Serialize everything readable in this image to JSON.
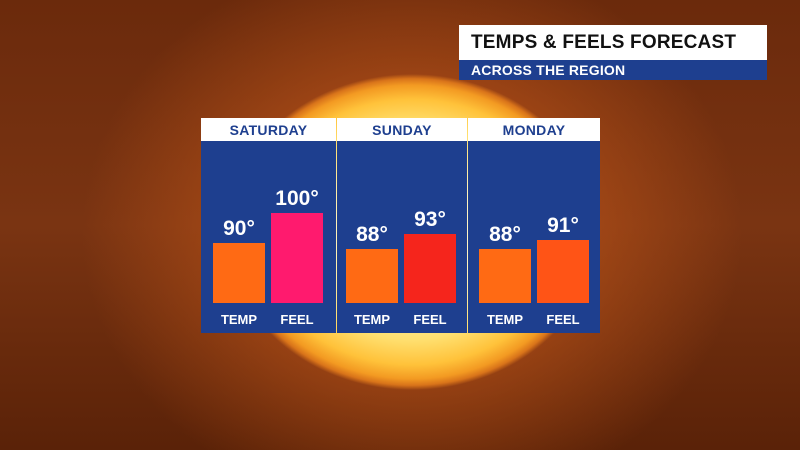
{
  "header": {
    "title": "TEMPS & FEELS FORECAST",
    "subtitle": "ACROSS THE REGION"
  },
  "colors": {
    "panel_blue": "#1e3f8f",
    "bar_orange": "#ff6a14",
    "bar_pink": "#ff1a6e",
    "bar_red": "#f5251c"
  },
  "chart_data": {
    "type": "bar",
    "categories": [
      "TEMP",
      "FEEL"
    ],
    "scale_floor": 70,
    "scale_ceiling": 100,
    "groups": [
      {
        "day": "SATURDAY",
        "bars": [
          {
            "label": "TEMP",
            "value": 90,
            "display": "90°",
            "color": "#ff6a14"
          },
          {
            "label": "FEEL",
            "value": 100,
            "display": "100°",
            "color": "#ff1a6e"
          }
        ]
      },
      {
        "day": "SUNDAY",
        "bars": [
          {
            "label": "TEMP",
            "value": 88,
            "display": "88°",
            "color": "#ff6a14"
          },
          {
            "label": "FEEL",
            "value": 93,
            "display": "93°",
            "color": "#f5251c"
          }
        ]
      },
      {
        "day": "MONDAY",
        "bars": [
          {
            "label": "TEMP",
            "value": 88,
            "display": "88°",
            "color": "#ff6a14"
          },
          {
            "label": "FEEL",
            "value": 91,
            "display": "91°",
            "color": "#ff5416"
          }
        ]
      }
    ]
  }
}
